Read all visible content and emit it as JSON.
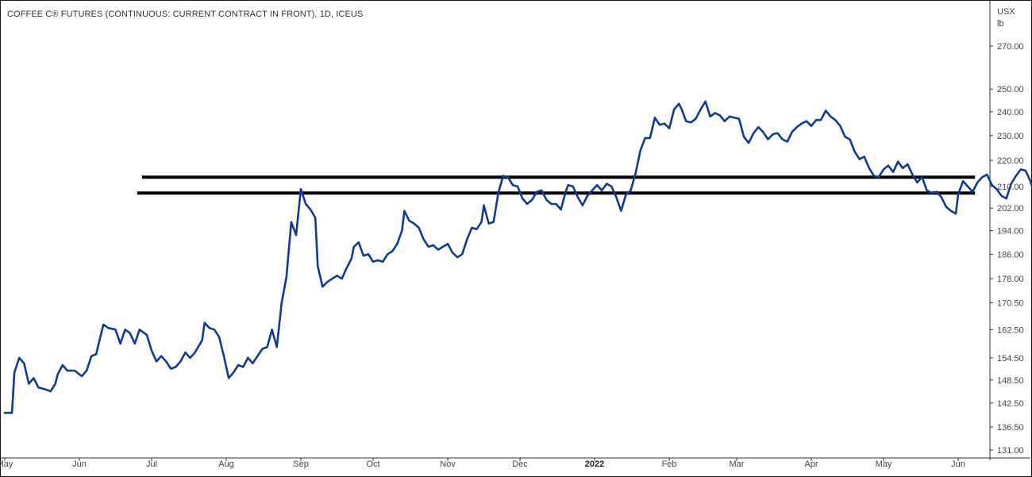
{
  "chart_data": {
    "type": "line",
    "title": "COFFEE C® FUTURES (CONTINUOUS: CURRENT CONTRACT IN FRONT), 1D, ICEUS",
    "unit_label": [
      "USX",
      "lb"
    ],
    "scale": "log",
    "ylim": [
      131,
      280
    ],
    "yticks": [
      "270.00",
      "250.00",
      "240.00",
      "230.00",
      "220.00",
      "210.00",
      "202.00",
      "194.00",
      "186.00",
      "178.00",
      "170.50",
      "162.50",
      "154.50",
      "148.50",
      "142.50",
      "136.50",
      "131.00"
    ],
    "x_tick_labels": [
      {
        "label": "May",
        "date": "2021-05-01"
      },
      {
        "label": "Jun",
        "date": "2021-06-01"
      },
      {
        "label": "Jul",
        "date": "2021-07-01"
      },
      {
        "label": "Aug",
        "date": "2021-08-01"
      },
      {
        "label": "Sep",
        "date": "2021-09-01"
      },
      {
        "label": "Oct",
        "date": "2021-10-01"
      },
      {
        "label": "Nov",
        "date": "2021-11-01"
      },
      {
        "label": "Dec",
        "date": "2021-12-01"
      },
      {
        "label": "2022",
        "date": "2022-01-01",
        "bold": true
      },
      {
        "label": "Feb",
        "date": "2022-02-01"
      },
      {
        "label": "Mar",
        "date": "2022-03-01"
      },
      {
        "label": "Apr",
        "date": "2022-04-01"
      },
      {
        "label": "May",
        "date": "2022-05-01"
      },
      {
        "label": "Jun",
        "date": "2022-06-01"
      }
    ],
    "series": [
      {
        "color": "#0d3a9b",
        "points": [
          [
            "2021-05-01",
            140.0
          ],
          [
            "2021-05-04",
            140.0
          ],
          [
            "2021-05-05",
            150.5
          ],
          [
            "2021-05-07",
            154.5
          ],
          [
            "2021-05-09",
            153.0
          ],
          [
            "2021-05-11",
            147.5
          ],
          [
            "2021-05-13",
            149.0
          ],
          [
            "2021-05-15",
            146.5
          ],
          [
            "2021-05-18",
            146.0
          ],
          [
            "2021-05-20",
            145.5
          ],
          [
            "2021-05-22",
            147.5
          ],
          [
            "2021-05-23",
            150.0
          ],
          [
            "2021-05-25",
            152.5
          ],
          [
            "2021-05-27",
            151.0
          ],
          [
            "2021-05-30",
            151.0
          ],
          [
            "2021-06-02",
            149.5
          ],
          [
            "2021-06-04",
            151.0
          ],
          [
            "2021-06-06",
            155.0
          ],
          [
            "2021-06-08",
            155.5
          ],
          [
            "2021-06-09",
            158.5
          ],
          [
            "2021-06-11",
            164.0
          ],
          [
            "2021-06-13",
            163.0
          ],
          [
            "2021-06-16",
            162.5
          ],
          [
            "2021-06-18",
            158.5
          ],
          [
            "2021-06-20",
            162.5
          ],
          [
            "2021-06-22",
            161.5
          ],
          [
            "2021-06-24",
            158.5
          ],
          [
            "2021-06-26",
            162.5
          ],
          [
            "2021-06-29",
            161.0
          ],
          [
            "2021-07-01",
            156.5
          ],
          [
            "2021-07-03",
            153.5
          ],
          [
            "2021-07-05",
            155.0
          ],
          [
            "2021-07-07",
            153.5
          ],
          [
            "2021-07-09",
            151.5
          ],
          [
            "2021-07-11",
            152.0
          ],
          [
            "2021-07-13",
            153.5
          ],
          [
            "2021-07-15",
            156.0
          ],
          [
            "2021-07-17",
            154.5
          ],
          [
            "2021-07-19",
            156.0
          ],
          [
            "2021-07-22",
            159.5
          ],
          [
            "2021-07-23",
            164.5
          ],
          [
            "2021-07-25",
            163.0
          ],
          [
            "2021-07-27",
            162.5
          ],
          [
            "2021-07-29",
            160.5
          ],
          [
            "2021-07-31",
            155.0
          ],
          [
            "2021-08-02",
            149.0
          ],
          [
            "2021-08-04",
            150.5
          ],
          [
            "2021-08-06",
            152.5
          ],
          [
            "2021-08-08",
            152.0
          ],
          [
            "2021-08-10",
            154.5
          ],
          [
            "2021-08-12",
            153.0
          ],
          [
            "2021-08-14",
            155.0
          ],
          [
            "2021-08-16",
            157.0
          ],
          [
            "2021-08-18",
            157.5
          ],
          [
            "2021-08-20",
            162.5
          ],
          [
            "2021-08-22",
            157.5
          ],
          [
            "2021-08-24",
            170.5
          ],
          [
            "2021-08-26",
            178.5
          ],
          [
            "2021-08-28",
            197.0
          ],
          [
            "2021-08-30",
            192.5
          ],
          [
            "2021-09-01",
            209.0
          ],
          [
            "2021-09-03",
            203.5
          ],
          [
            "2021-09-05",
            201.5
          ],
          [
            "2021-09-07",
            198.5
          ],
          [
            "2021-09-08",
            182.0
          ],
          [
            "2021-09-10",
            175.5
          ],
          [
            "2021-09-12",
            177.0
          ],
          [
            "2021-09-14",
            178.0
          ],
          [
            "2021-09-16",
            179.0
          ],
          [
            "2021-09-18",
            178.0
          ],
          [
            "2021-09-20",
            181.5
          ],
          [
            "2021-09-22",
            184.5
          ],
          [
            "2021-09-23",
            188.5
          ],
          [
            "2021-09-25",
            190.0
          ],
          [
            "2021-09-27",
            185.5
          ],
          [
            "2021-09-29",
            186.0
          ],
          [
            "2021-10-01",
            183.5
          ],
          [
            "2021-10-03",
            184.0
          ],
          [
            "2021-10-05",
            183.5
          ],
          [
            "2021-10-07",
            186.0
          ],
          [
            "2021-10-09",
            187.0
          ],
          [
            "2021-10-11",
            189.5
          ],
          [
            "2021-10-13",
            194.0
          ],
          [
            "2021-10-14",
            201.0
          ],
          [
            "2021-10-16",
            197.5
          ],
          [
            "2021-10-18",
            196.5
          ],
          [
            "2021-10-20",
            195.0
          ],
          [
            "2021-10-22",
            191.0
          ],
          [
            "2021-10-24",
            188.5
          ],
          [
            "2021-10-26",
            189.0
          ],
          [
            "2021-10-28",
            187.5
          ],
          [
            "2021-10-30",
            188.5
          ],
          [
            "2021-11-01",
            189.5
          ],
          [
            "2021-11-03",
            186.5
          ],
          [
            "2021-11-05",
            185.0
          ],
          [
            "2021-11-07",
            186.0
          ],
          [
            "2021-11-09",
            191.0
          ],
          [
            "2021-11-11",
            195.0
          ],
          [
            "2021-11-13",
            194.5
          ],
          [
            "2021-11-15",
            197.0
          ],
          [
            "2021-11-16",
            203.0
          ],
          [
            "2021-11-18",
            196.5
          ],
          [
            "2021-11-20",
            197.0
          ],
          [
            "2021-11-22",
            207.5
          ],
          [
            "2021-11-24",
            214.0
          ],
          [
            "2021-11-26",
            213.5
          ],
          [
            "2021-11-28",
            210.5
          ],
          [
            "2021-11-30",
            210.0
          ],
          [
            "2021-12-02",
            205.5
          ],
          [
            "2021-12-04",
            203.5
          ],
          [
            "2021-12-06",
            205.0
          ],
          [
            "2021-12-08",
            208.0
          ],
          [
            "2021-12-10",
            208.5
          ],
          [
            "2021-12-12",
            205.0
          ],
          [
            "2021-12-14",
            203.5
          ],
          [
            "2021-12-16",
            203.5
          ],
          [
            "2021-12-18",
            201.5
          ],
          [
            "2021-12-20",
            208.0
          ],
          [
            "2021-12-21",
            210.5
          ],
          [
            "2021-12-23",
            210.0
          ],
          [
            "2021-12-25",
            206.0
          ],
          [
            "2021-12-27",
            203.0
          ],
          [
            "2021-12-29",
            206.5
          ],
          [
            "2021-12-31",
            208.5
          ],
          [
            "2022-01-02",
            210.5
          ],
          [
            "2022-01-04",
            208.5
          ],
          [
            "2022-01-06",
            211.0
          ],
          [
            "2022-01-08",
            210.0
          ],
          [
            "2022-01-10",
            206.0
          ],
          [
            "2022-01-12",
            201.0
          ],
          [
            "2022-01-14",
            207.0
          ],
          [
            "2022-01-16",
            208.5
          ],
          [
            "2022-01-18",
            215.0
          ],
          [
            "2022-01-20",
            224.0
          ],
          [
            "2022-01-22",
            229.0
          ],
          [
            "2022-01-24",
            229.0
          ],
          [
            "2022-01-26",
            237.5
          ],
          [
            "2022-01-28",
            234.5
          ],
          [
            "2022-01-30",
            235.0
          ],
          [
            "2022-02-01",
            233.0
          ],
          [
            "2022-02-03",
            241.0
          ],
          [
            "2022-02-05",
            243.5
          ],
          [
            "2022-02-06",
            241.5
          ],
          [
            "2022-02-08",
            236.0
          ],
          [
            "2022-02-10",
            235.5
          ],
          [
            "2022-02-12",
            237.0
          ],
          [
            "2022-02-14",
            241.0
          ],
          [
            "2022-02-16",
            244.5
          ],
          [
            "2022-02-18",
            238.0
          ],
          [
            "2022-02-20",
            239.5
          ],
          [
            "2022-02-22",
            238.5
          ],
          [
            "2022-02-24",
            236.0
          ],
          [
            "2022-02-26",
            238.0
          ],
          [
            "2022-02-28",
            237.5
          ],
          [
            "2022-03-02",
            237.0
          ],
          [
            "2022-03-04",
            229.5
          ],
          [
            "2022-03-06",
            227.0
          ],
          [
            "2022-03-08",
            231.0
          ],
          [
            "2022-03-10",
            233.5
          ],
          [
            "2022-03-12",
            231.5
          ],
          [
            "2022-03-14",
            228.5
          ],
          [
            "2022-03-16",
            230.5
          ],
          [
            "2022-03-18",
            231.0
          ],
          [
            "2022-03-20",
            228.5
          ],
          [
            "2022-03-22",
            227.5
          ],
          [
            "2022-03-24",
            231.5
          ],
          [
            "2022-03-26",
            233.5
          ],
          [
            "2022-03-28",
            235.0
          ],
          [
            "2022-03-30",
            236.0
          ],
          [
            "2022-04-01",
            234.0
          ],
          [
            "2022-04-03",
            236.5
          ],
          [
            "2022-04-05",
            236.5
          ],
          [
            "2022-04-07",
            240.5
          ],
          [
            "2022-04-09",
            238.0
          ],
          [
            "2022-04-11",
            236.5
          ],
          [
            "2022-04-13",
            234.0
          ],
          [
            "2022-04-15",
            229.5
          ],
          [
            "2022-04-17",
            228.5
          ],
          [
            "2022-04-19",
            223.5
          ],
          [
            "2022-04-21",
            220.5
          ],
          [
            "2022-04-23",
            221.5
          ],
          [
            "2022-04-25",
            217.0
          ],
          [
            "2022-04-27",
            214.0
          ],
          [
            "2022-04-29",
            213.5
          ],
          [
            "2022-05-01",
            216.5
          ],
          [
            "2022-05-03",
            218.0
          ],
          [
            "2022-05-05",
            215.5
          ],
          [
            "2022-05-07",
            219.5
          ],
          [
            "2022-05-09",
            217.0
          ],
          [
            "2022-05-11",
            218.5
          ],
          [
            "2022-05-13",
            214.5
          ],
          [
            "2022-05-15",
            211.5
          ],
          [
            "2022-05-17",
            213.5
          ],
          [
            "2022-05-19",
            208.5
          ],
          [
            "2022-05-21",
            207.5
          ],
          [
            "2022-05-23",
            208.0
          ],
          [
            "2022-05-25",
            206.0
          ],
          [
            "2022-05-27",
            202.5
          ],
          [
            "2022-05-29",
            201.0
          ],
          [
            "2022-05-31",
            200.0
          ],
          [
            "2022-06-01",
            207.0
          ],
          [
            "2022-06-03",
            212.0
          ],
          [
            "2022-06-05",
            210.0
          ],
          [
            "2022-06-07",
            208.0
          ],
          [
            "2022-06-09",
            211.5
          ],
          [
            "2022-06-11",
            213.5
          ],
          [
            "2022-06-13",
            214.5
          ],
          [
            "2022-06-15",
            210.5
          ],
          [
            "2022-06-17",
            209.0
          ],
          [
            "2022-06-19",
            206.5
          ],
          [
            "2022-06-21",
            205.5
          ],
          [
            "2022-06-23",
            211.0
          ],
          [
            "2022-06-25",
            214.0
          ],
          [
            "2022-06-27",
            216.5
          ],
          [
            "2022-06-29",
            216.0
          ],
          [
            "2022-07-01",
            212.0
          ],
          [
            "2022-07-03",
            206.0
          ],
          [
            "2022-07-05",
            205.5
          ],
          [
            "2022-07-07",
            206.0
          ],
          [
            "2022-07-09",
            205.5
          ],
          [
            "2022-07-11",
            205.0
          ],
          [
            "2022-07-13",
            208.0
          ],
          [
            "2022-07-15",
            206.5
          ],
          [
            "2022-07-17",
            206.0
          ],
          [
            "2022-07-19",
            206.5
          ],
          [
            "2022-07-21",
            205.5
          ],
          [
            "2022-07-23",
            203.0
          ],
          [
            "2022-07-25",
            199.0
          ],
          [
            "2022-07-27",
            197.0
          ],
          [
            "2022-07-29",
            196.0
          ],
          [
            "2022-07-31",
            196.0
          ],
          [
            "2022-08-02",
            206.0
          ],
          [
            "2022-08-04",
            201.5
          ],
          [
            "2022-08-06",
            203.0
          ],
          [
            "2022-08-08",
            211.0
          ],
          [
            "2022-08-10",
            213.5
          ],
          [
            "2022-08-12",
            207.5
          ],
          [
            "2022-08-14",
            206.5
          ],
          [
            "2022-08-16",
            205.0
          ],
          [
            "2022-08-18",
            204.5
          ],
          [
            "2022-08-20",
            203.5
          ],
          [
            "2022-08-22",
            206.5
          ],
          [
            "2022-08-24",
            212.0
          ],
          [
            "2022-08-26",
            215.0
          ],
          [
            "2022-08-28",
            217.5
          ]
        ]
      }
    ],
    "horizontal_lines": [
      {
        "value": 213.5,
        "x_start": "2021-06-27",
        "x_end": "2022-06-08"
      },
      {
        "value": 207.5,
        "x_start": "2021-06-25",
        "x_end": "2022-06-08"
      }
    ]
  }
}
